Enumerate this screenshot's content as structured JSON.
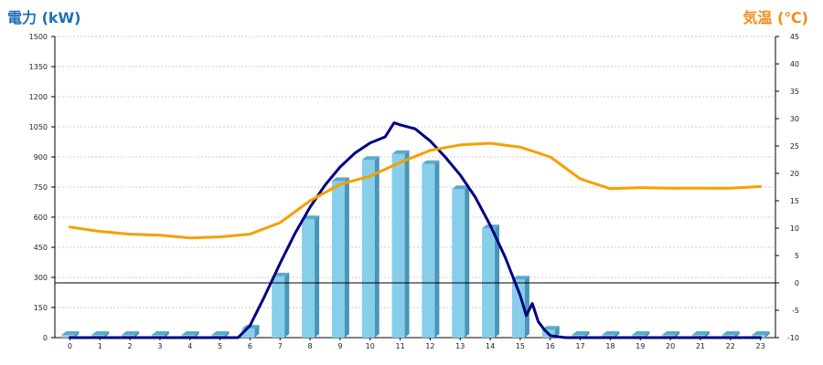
{
  "chart_data": {
    "type": "bar",
    "y_left_label": "電力 (kW)",
    "y_right_label": "気温 (℃)",
    "left_ticks": [
      "0",
      "150",
      "300",
      "450",
      "600",
      "750",
      "900",
      "1050",
      "1200",
      "1350",
      "1500"
    ],
    "right_ticks": [
      "-10",
      "-5",
      "0",
      "5",
      "10",
      "15",
      "20",
      "25",
      "30",
      "35",
      "40",
      "45"
    ],
    "ylim_left": [
      0,
      1500
    ],
    "ylim_right": [
      -10,
      45
    ],
    "grid": true,
    "categories": [
      "0",
      "1",
      "2",
      "3",
      "4",
      "5",
      "6",
      "7",
      "8",
      "9",
      "10",
      "11",
      "12",
      "13",
      "14",
      "15",
      "16",
      "17",
      "18",
      "19",
      "20",
      "21",
      "22",
      "23"
    ],
    "series": [
      {
        "axis": "left",
        "kind": "bar",
        "color": "#87ceeb",
        "values": [
          0,
          0,
          0,
          0,
          0,
          0,
          45,
          305,
          590,
          780,
          885,
          915,
          865,
          740,
          545,
          290,
          40,
          0,
          0,
          0,
          0,
          0,
          0,
          0
        ]
      },
      {
        "axis": "left",
        "kind": "line",
        "color": "#000080",
        "x": [
          0,
          1,
          2,
          3,
          4,
          5,
          5.6,
          6,
          6.5,
          7,
          7.5,
          8,
          8.5,
          9,
          9.5,
          10,
          10.5,
          10.8,
          11,
          11.5,
          12,
          12.5,
          13,
          13.5,
          14,
          14.5,
          15,
          15.2,
          15.4,
          15.6,
          15.8,
          16,
          16.5,
          17,
          18,
          19,
          20,
          21,
          22,
          23
        ],
        "values": [
          0,
          0,
          0,
          0,
          0,
          0,
          0,
          60,
          210,
          370,
          520,
          650,
          760,
          850,
          920,
          970,
          1000,
          1070,
          1060,
          1040,
          980,
          900,
          810,
          700,
          560,
          400,
          210,
          110,
          170,
          80,
          40,
          10,
          0,
          0,
          0,
          0,
          0,
          0,
          0,
          0
        ]
      },
      {
        "axis": "right",
        "kind": "line",
        "color": "#f5a000",
        "x": [
          0,
          1,
          2,
          3,
          4,
          5,
          6,
          7,
          8,
          9,
          10,
          11,
          12,
          13,
          14,
          15,
          16,
          17,
          18,
          19,
          20,
          21,
          22,
          23
        ],
        "values": [
          10.2,
          9.4,
          8.9,
          8.7,
          8.2,
          8.4,
          8.9,
          11,
          15,
          18,
          19.5,
          22,
          24.2,
          25.2,
          25.5,
          24.8,
          23,
          19,
          17.2,
          17.4,
          17.3,
          17.3,
          17.3,
          17.6
        ]
      }
    ],
    "reference_lines": [
      {
        "axis": "right",
        "value": 0
      }
    ]
  }
}
